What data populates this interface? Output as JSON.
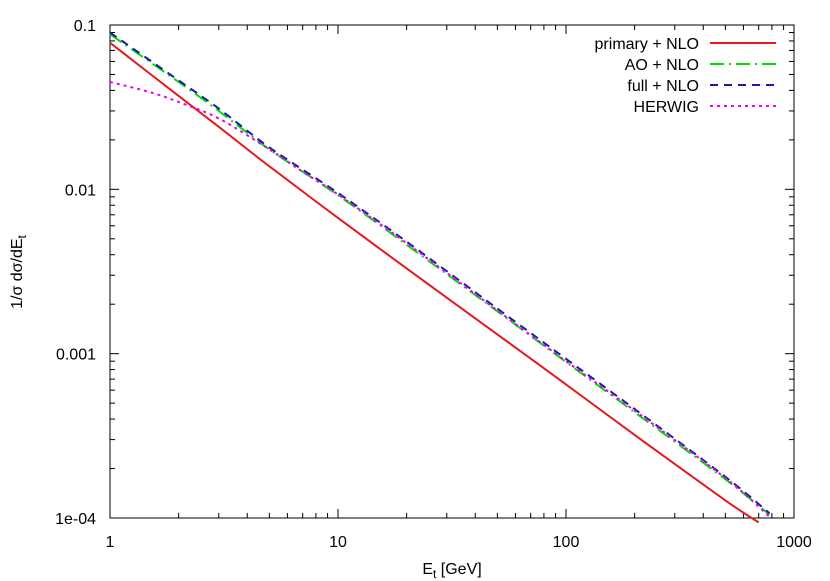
{
  "chart_data": {
    "type": "line",
    "title": "",
    "xlabel": {
      "main": "E",
      "sub": "t",
      "rest": " [GeV]"
    },
    "ylabel": {
      "main": "1/σ dσ/dE",
      "sub": "t"
    },
    "xscale": "log",
    "yscale": "log",
    "xlim": [
      1,
      1000
    ],
    "ylim": [
      0.0001,
      0.1
    ],
    "grid": false,
    "legend_position": "top-right",
    "x_ticks": [
      {
        "value": 1,
        "label": "1"
      },
      {
        "value": 10,
        "label": "10"
      },
      {
        "value": 100,
        "label": "100"
      },
      {
        "value": 1000,
        "label": "1000"
      }
    ],
    "y_ticks": [
      {
        "value": 0.0001,
        "label": "1e-04"
      },
      {
        "value": 0.001,
        "label": "0.001"
      },
      {
        "value": 0.01,
        "label": "0.01"
      },
      {
        "value": 0.1,
        "label": "0.1"
      }
    ],
    "series": [
      {
        "name": "primary + NLO",
        "color": "#e41a1c",
        "dash": "solid",
        "x": [
          1,
          2,
          3,
          5,
          10,
          20,
          50,
          100,
          200,
          500,
          700
        ],
        "y": [
          0.078,
          0.037,
          0.024,
          0.0138,
          0.0067,
          0.0033,
          0.00131,
          0.00065,
          0.00032,
          0.000128,
          9.4e-05
        ]
      },
      {
        "name": "AO + NLO",
        "color": "#00dd00",
        "dash": "long-dash-dot",
        "x": [
          1,
          2,
          3,
          5,
          10,
          20,
          50,
          100,
          200,
          500,
          780
        ],
        "y": [
          0.088,
          0.045,
          0.03,
          0.0175,
          0.0092,
          0.0046,
          0.00181,
          0.00089,
          0.00044,
          0.000172,
          0.000105
        ]
      },
      {
        "name": "full + NLO",
        "color": "#1a1aaa",
        "dash": "dashed",
        "x": [
          1,
          2,
          3,
          5,
          10,
          20,
          50,
          100,
          200,
          500,
          780
        ],
        "y": [
          0.09,
          0.046,
          0.031,
          0.018,
          0.0095,
          0.0048,
          0.00188,
          0.00093,
          0.00046,
          0.000178,
          0.000107
        ]
      },
      {
        "name": "HERWIG",
        "color": "#ee00ee",
        "dash": "dotted",
        "x": [
          1,
          1.5,
          2,
          3,
          5,
          7,
          10,
          20,
          50,
          100,
          200,
          500,
          780
        ],
        "y": [
          0.045,
          0.039,
          0.034,
          0.027,
          0.0175,
          0.0128,
          0.0093,
          0.0047,
          0.00183,
          0.0009,
          0.00045,
          0.000175,
          0.000102
        ]
      }
    ]
  }
}
